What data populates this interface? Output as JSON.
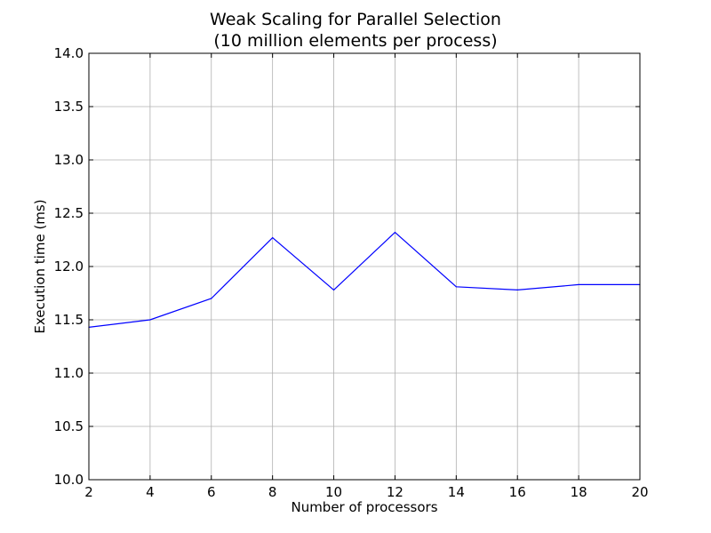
{
  "chart_data": {
    "type": "line",
    "title": "Weak Scaling for Parallel Selection",
    "subtitle": "(10 million elements per process)",
    "xlabel": "Number of processors",
    "ylabel": "Execution time (ms)",
    "xlim": [
      2,
      20
    ],
    "ylim": [
      10.0,
      14.0
    ],
    "xticks": [
      "2",
      "4",
      "6",
      "8",
      "10",
      "12",
      "14",
      "16",
      "18",
      "20"
    ],
    "yticks": [
      "10.0",
      "10.5",
      "11.0",
      "11.5",
      "12.0",
      "12.5",
      "13.0",
      "13.5",
      "14.0"
    ],
    "grid": true,
    "colors": {
      "series": "#0000ff",
      "grid": "#b0b0b0"
    },
    "series": [
      {
        "x": [
          2,
          4,
          6,
          8,
          10,
          12,
          14,
          16,
          18,
          20
        ],
        "y": [
          11.43,
          11.5,
          11.7,
          12.27,
          11.78,
          12.32,
          11.81,
          11.78,
          11.83,
          11.83
        ]
      }
    ]
  }
}
